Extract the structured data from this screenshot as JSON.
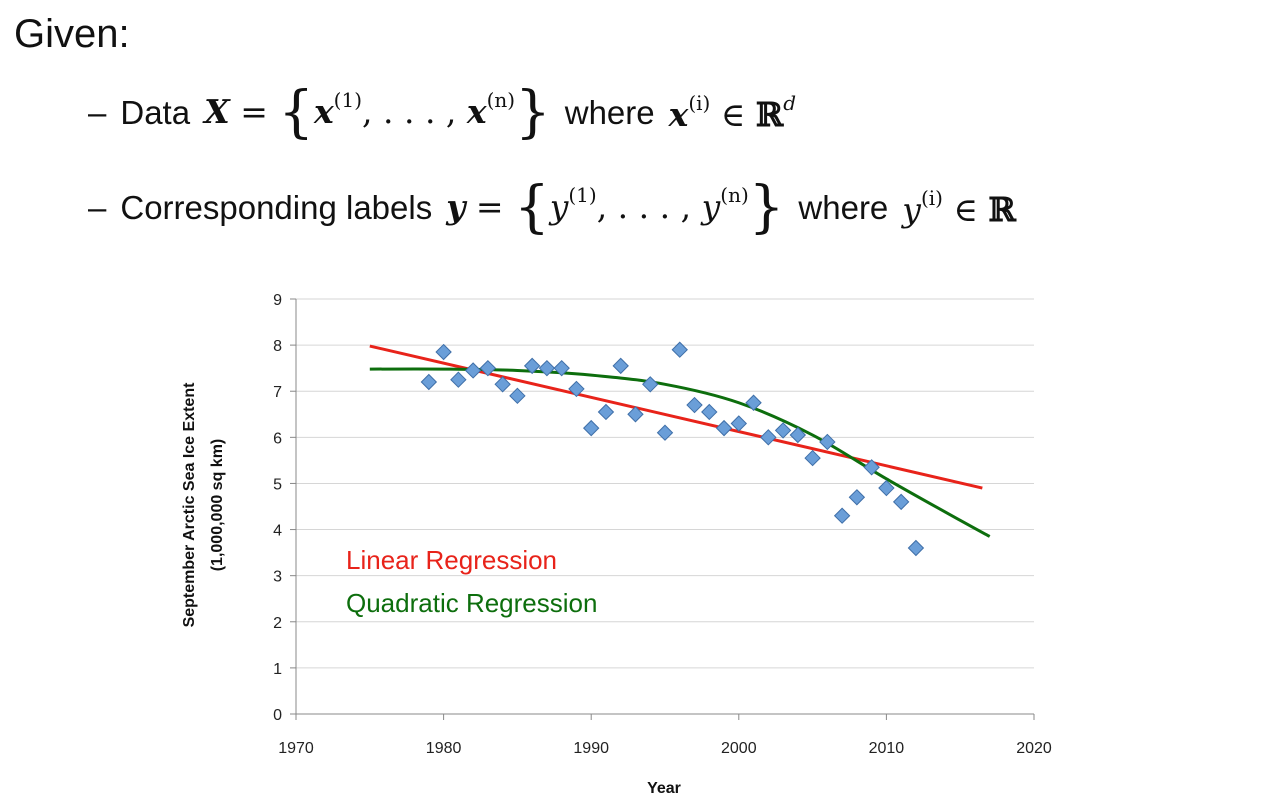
{
  "heading": "Given:",
  "bullet1": {
    "dash": "–",
    "label": "Data",
    "set_lhs": "X",
    "eq": "=",
    "open": "{",
    "elem_first": "x",
    "sup_first": "(1)",
    "dots": ", . . . , ",
    "elem_last": "x",
    "sup_last": "(n)",
    "close": "}",
    "where": "where",
    "elem_where": "x",
    "sup_where": "(i)",
    "in": "∈",
    "space": "ℝ",
    "space_sup": "d"
  },
  "bullet2": {
    "dash": "–",
    "label": "Corresponding labels",
    "set_lhs": "y",
    "eq": "=",
    "open": "{",
    "elem_first": "y",
    "sup_first": "(1)",
    "dots": ", . . . , ",
    "elem_last": "y",
    "sup_last": "(n)",
    "close": "}",
    "where": "where",
    "elem_where": "y",
    "sup_where": "(i)",
    "in": "∈",
    "space": "ℝ"
  },
  "chart_data": {
    "type": "scatter",
    "xlabel": "Year",
    "ylabel": "September Arctic Sea Ice Extent",
    "ylabel2": "(1,000,000 sq km)",
    "xlim": [
      1970,
      2020
    ],
    "ylim": [
      0,
      9
    ],
    "xticks": [
      1970,
      1980,
      1990,
      2000,
      2010,
      2020
    ],
    "yticks": [
      0,
      1,
      2,
      3,
      4,
      5,
      6,
      7,
      8,
      9
    ],
    "grid": "horizontal",
    "points": [
      [
        1979,
        7.2
      ],
      [
        1980,
        7.85
      ],
      [
        1981,
        7.25
      ],
      [
        1982,
        7.45
      ],
      [
        1983,
        7.5
      ],
      [
        1984,
        7.15
      ],
      [
        1985,
        6.9
      ],
      [
        1986,
        7.55
      ],
      [
        1987,
        7.5
      ],
      [
        1988,
        7.5
      ],
      [
        1989,
        7.05
      ],
      [
        1990,
        6.2
      ],
      [
        1991,
        6.55
      ],
      [
        1992,
        7.55
      ],
      [
        1993,
        6.5
      ],
      [
        1994,
        7.15
      ],
      [
        1995,
        6.1
      ],
      [
        1996,
        7.9
      ],
      [
        1997,
        6.7
      ],
      [
        1998,
        6.55
      ],
      [
        1999,
        6.2
      ],
      [
        2000,
        6.3
      ],
      [
        2001,
        6.75
      ],
      [
        2002,
        6.0
      ],
      [
        2003,
        6.15
      ],
      [
        2004,
        6.05
      ],
      [
        2005,
        5.55
      ],
      [
        2006,
        5.9
      ],
      [
        2007,
        4.3
      ],
      [
        2008,
        4.7
      ],
      [
        2009,
        5.35
      ],
      [
        2010,
        4.9
      ],
      [
        2011,
        4.6
      ],
      [
        2012,
        3.6
      ]
    ],
    "fits": [
      {
        "name": "Linear Regression",
        "color": "#e8231a",
        "x": [
          1975,
          2016.5
        ],
        "y": [
          7.98,
          4.9
        ]
      },
      {
        "name": "Quadratic Regression",
        "color": "#0d6e0d",
        "x": [
          1975,
          1980,
          1985,
          1990,
          1995,
          2000,
          2005,
          2010,
          2015,
          2017
        ],
        "y": [
          7.48,
          7.48,
          7.45,
          7.35,
          7.15,
          6.75,
          6.05,
          5.1,
          4.2,
          3.85
        ]
      }
    ],
    "marker_color": "#6a9ed8",
    "marker_edge": "#3f6fa8"
  }
}
